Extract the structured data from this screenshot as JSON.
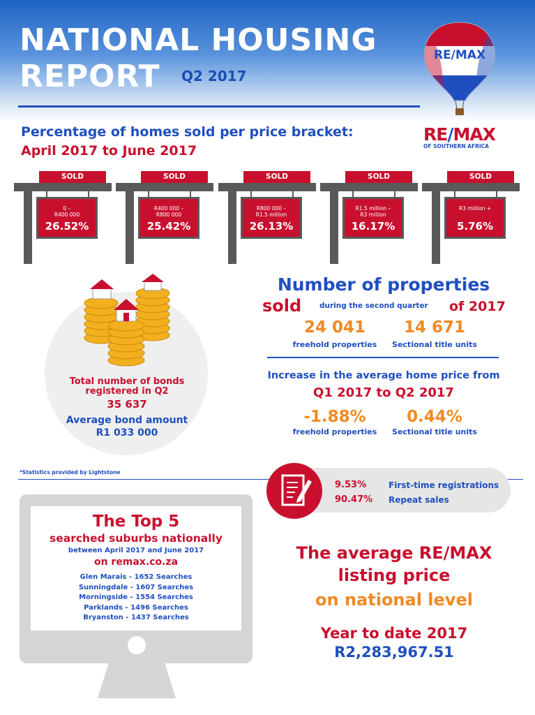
{
  "header": {
    "title_line1": "NATIONAL HOUSING",
    "title_line2": "REPORT",
    "quarter": "Q2 2017"
  },
  "logo": {
    "balloon_text": "RE/MAX",
    "mark_re": "RE",
    "mark_slash": "/",
    "mark_max": "MAX",
    "tagline": "OF SOUTHERN AFRICA"
  },
  "price_brackets": {
    "title": "Percentage of homes sold per price bracket:",
    "subtitle": "April 2017 to June 2017",
    "sign_label": "SOLD",
    "items": [
      {
        "range_line1": "0 –",
        "range_line2": "R400 000",
        "value": "26.52%"
      },
      {
        "range_line1": "R400 000 –",
        "range_line2": "R800 000",
        "value": "25.42%"
      },
      {
        "range_line1": "R800 000 –",
        "range_line2": "R1.5 million",
        "value": "26.13%"
      },
      {
        "range_line1": "R1.5 million –",
        "range_line2": "R3 million",
        "value": "16.17%"
      },
      {
        "range_line1": "R3 million +",
        "range_line2": "",
        "value": "5.76%"
      }
    ]
  },
  "bonds": {
    "title_line1": "Total number of bonds",
    "title_line2": "registered in Q2",
    "count": "35 637",
    "avg_label": "Average bond amount",
    "avg_value": "R1 033 000"
  },
  "properties": {
    "title": "Number of properties",
    "sold_word": "sold",
    "during_text": "during the second quarter",
    "year_text": "of 2017",
    "freehold_value": "24 041",
    "freehold_label": "freehold properties",
    "sectional_value": "14 671",
    "sectional_label": "Sectional title units"
  },
  "price_increase": {
    "title": "Increase in the average home price from",
    "subtitle": "Q1 2017 to Q2 2017",
    "freehold_value": "-1.88%",
    "freehold_label": "freehold properties",
    "sectional_value": "0.44%",
    "sectional_label": "Sectional title units"
  },
  "stats_note": "*Statistics provided by Lightstone",
  "registrations": {
    "first_pct": "9.53%",
    "first_label": "First-time registrations",
    "repeat_pct": "90.47%",
    "repeat_label": "Repeat sales"
  },
  "top5": {
    "title": "The Top 5",
    "subtitle": "searched suburbs nationally",
    "dates": "between April 2017 and June 2017",
    "site": "on remax.co.za",
    "suburbs": [
      "Glen Marais - 1652 Searches",
      "Sunningdale - 1607 Searches",
      "Morningside - 1554 Searches",
      "Parklands - 1496 Searches",
      "Bryanston - 1437 Searches"
    ]
  },
  "avg_listing": {
    "line1": "The average RE/MAX",
    "line2": "listing price",
    "line3": "on national level",
    "ytd_label": "Year to date 2017",
    "ytd_value": "R2,283,967.51"
  },
  "colors": {
    "brand_red": "#c8102e",
    "brand_blue": "#1f4fbf",
    "accent_orange": "#f08a24",
    "sign_post": "#595959"
  },
  "icons": [
    "hot-air-balloon-icon",
    "house-on-coins-icon",
    "document-pen-icon",
    "computer-monitor-icon"
  ]
}
